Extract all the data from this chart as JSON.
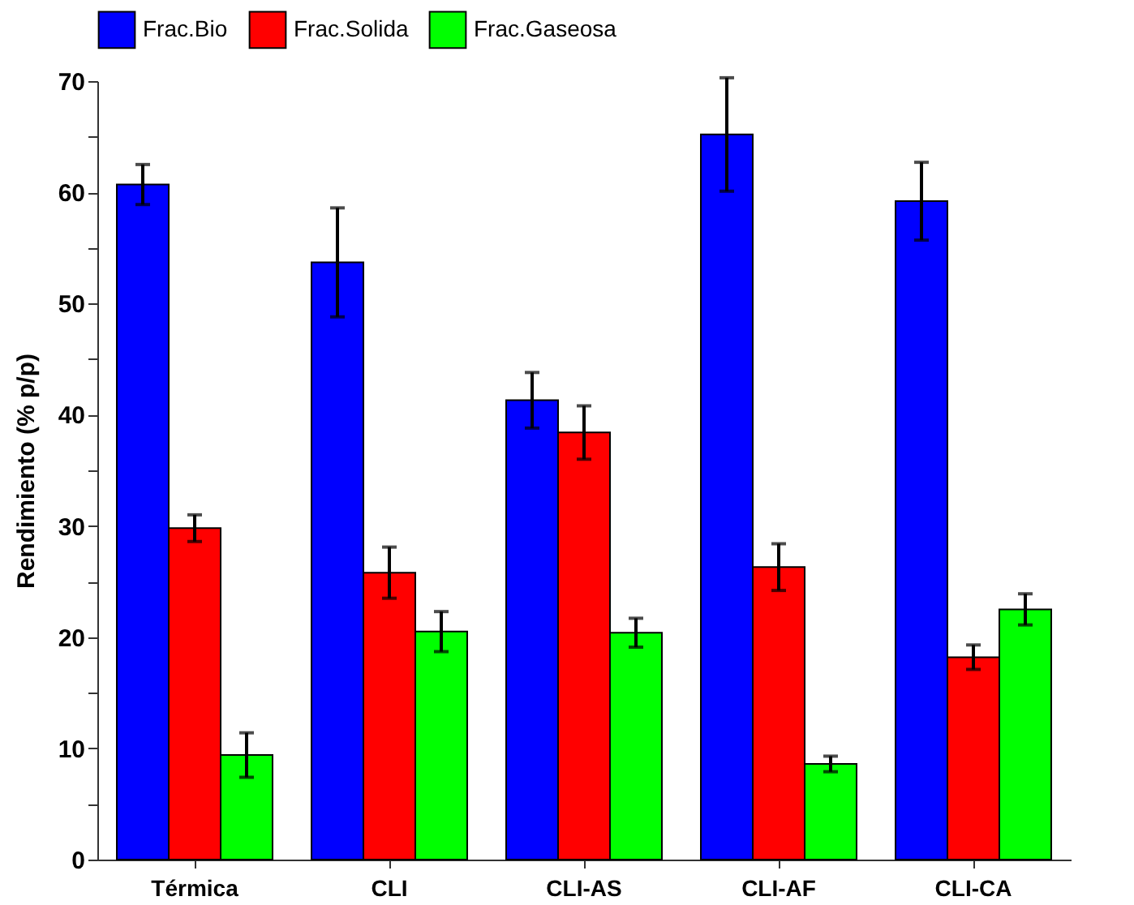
{
  "chart_data": {
    "type": "bar",
    "ylabel": "Rendimiento (% p/p)",
    "categories": [
      "Térmica",
      "CLI",
      "CLI-AS",
      "CLI-AF",
      "CLI-CA"
    ],
    "series": [
      {
        "name": "Frac.Bio",
        "color": "#0000ff",
        "values": [
          60.7,
          53.7,
          41.3,
          65.2,
          59.2
        ],
        "errors": [
          1.8,
          4.9,
          2.5,
          5.1,
          3.5
        ]
      },
      {
        "name": "Frac.Solida",
        "color": "#ff0000",
        "values": [
          29.8,
          25.8,
          38.4,
          26.3,
          18.2
        ],
        "errors": [
          1.2,
          2.3,
          2.4,
          2.1,
          1.1
        ]
      },
      {
        "name": "Frac.Gaseosa",
        "color": "#00ff00",
        "values": [
          9.4,
          20.5,
          20.4,
          8.6,
          22.5
        ],
        "errors": [
          2.0,
          1.8,
          1.3,
          0.7,
          1.4
        ]
      }
    ],
    "ylim": [
      0,
      70
    ],
    "yticks": [
      0,
      {
        "value": 5,
        "label": null
      },
      10,
      {
        "value": 15,
        "label": null
      },
      20,
      {
        "value": 25,
        "label": null
      },
      30,
      {
        "value": 35,
        "label": null
      },
      40,
      {
        "value": 45,
        "label": null
      },
      50,
      {
        "value": 55,
        "label": null
      },
      60,
      {
        "value": 65,
        "label": null
      },
      70
    ],
    "grid": false,
    "legend": "top"
  }
}
